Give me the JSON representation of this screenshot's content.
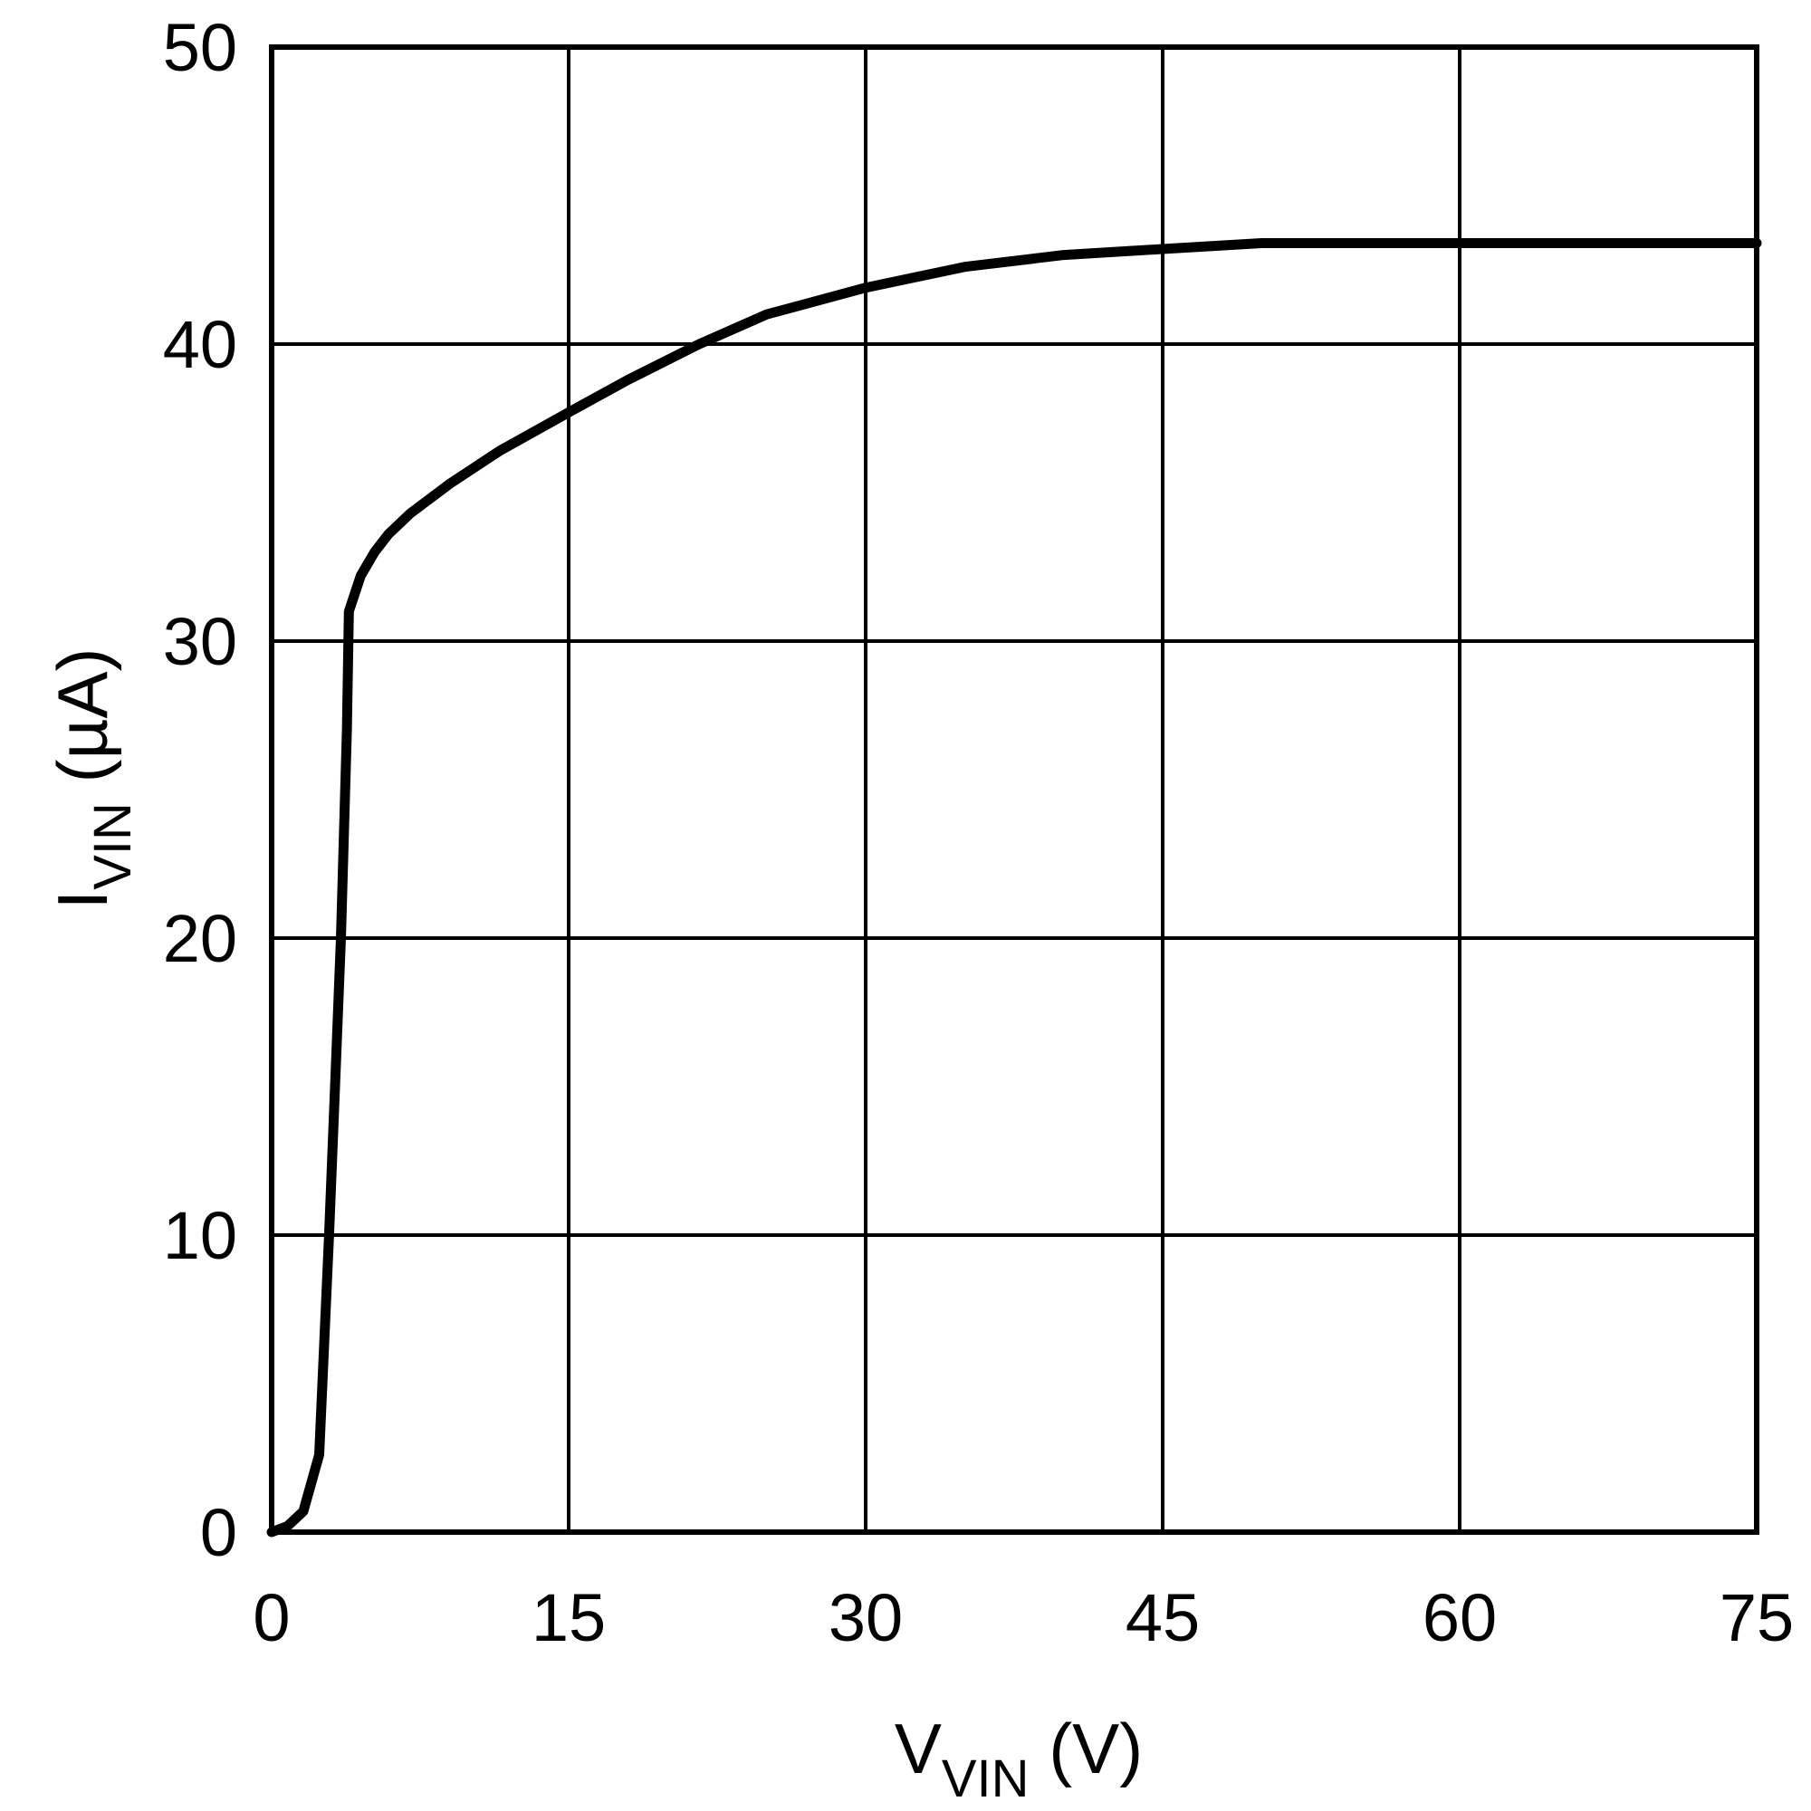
{
  "chart_data": {
    "type": "line",
    "title": "",
    "xlabel": "V_VIN (V)",
    "ylabel": "I_VIN (µA)",
    "xlabel_parts": {
      "main": "V",
      "sub": "VIN",
      "unit": " (V)"
    },
    "ylabel_parts": {
      "main": "I",
      "sub": "VIN",
      "unit": " (µA)"
    },
    "xlim": [
      0,
      75
    ],
    "ylim": [
      0,
      50
    ],
    "xticks": [
      0,
      15,
      30,
      45,
      60,
      75
    ],
    "yticks": [
      0,
      10,
      20,
      30,
      40,
      50
    ],
    "grid": true,
    "legend": null,
    "series": [
      {
        "name": "I_VIN",
        "color": "#000000",
        "x": [
          0.0,
          0.8,
          1.6,
          2.4,
          2.9,
          3.2,
          3.5,
          3.8,
          3.9,
          4.5,
          5.2,
          5.9,
          7.0,
          9.0,
          11.5,
          15.0,
          18.0,
          21.6,
          25.0,
          30.0,
          35.0,
          40.0,
          45.0,
          50.0,
          55.0,
          60.0,
          65.0,
          70.0,
          75.0
        ],
        "y": [
          0.0,
          0.2,
          0.7,
          2.6,
          10.0,
          15.0,
          20.0,
          27.0,
          31.0,
          32.2,
          33.0,
          33.6,
          34.3,
          35.3,
          36.4,
          37.7,
          38.8,
          40.0,
          41.0,
          41.9,
          42.6,
          43.0,
          43.2,
          43.4,
          43.4,
          43.4,
          43.4,
          43.4,
          43.4
        ]
      }
    ]
  }
}
